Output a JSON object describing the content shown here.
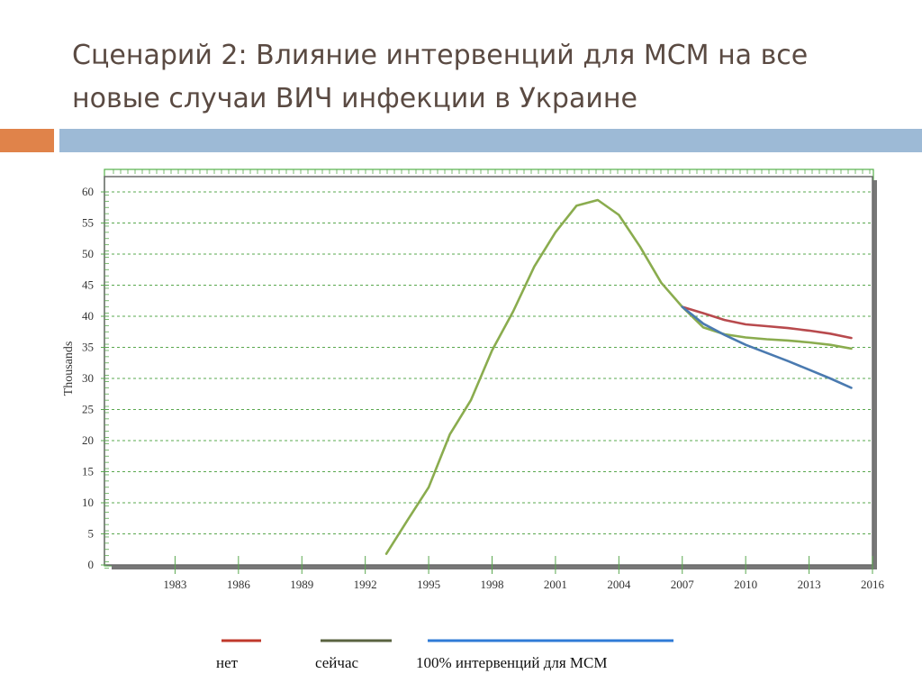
{
  "slide": {
    "title_line1": "Сценарий 2: Влияние интервенций для МСМ на все",
    "title_line2": "новые случаи ВИЧ инфекции в Украине"
  },
  "chart_data": {
    "type": "line",
    "title": "",
    "xlabel": "",
    "ylabel": "Thousands",
    "xlim": [
      1980,
      2016
    ],
    "ylim": [
      0,
      60
    ],
    "x_ticks": [
      1983,
      1986,
      1989,
      1992,
      1995,
      1998,
      2001,
      2004,
      2007,
      2010,
      2013,
      2016
    ],
    "y_ticks": [
      0,
      5,
      10,
      15,
      20,
      25,
      30,
      35,
      40,
      45,
      50,
      55,
      60
    ],
    "grid": true,
    "legend_position": "bottom",
    "series": [
      {
        "name": "сейчас",
        "color": "#8aac4e",
        "points": [
          [
            1993,
            1.8
          ],
          [
            1994,
            7.2
          ],
          [
            1995,
            12.5
          ],
          [
            1996,
            21.0
          ],
          [
            1997,
            26.5
          ],
          [
            1998,
            34.5
          ],
          [
            1999,
            40.8
          ],
          [
            2000,
            48.0
          ],
          [
            2001,
            53.5
          ],
          [
            2002,
            57.8
          ],
          [
            2003,
            58.7
          ],
          [
            2004,
            56.3
          ],
          [
            2005,
            51.2
          ],
          [
            2006,
            45.4
          ],
          [
            2007,
            41.5
          ],
          [
            2008,
            38.2
          ],
          [
            2009,
            37.1
          ],
          [
            2010,
            36.6
          ],
          [
            2011,
            36.3
          ],
          [
            2012,
            36.1
          ],
          [
            2013,
            35.8
          ],
          [
            2014,
            35.4
          ],
          [
            2015,
            34.8
          ]
        ]
      },
      {
        "name": "нет",
        "color": "#b84a4d",
        "points": [
          [
            2007,
            41.5
          ],
          [
            2008,
            40.5
          ],
          [
            2009,
            39.4
          ],
          [
            2010,
            38.7
          ],
          [
            2011,
            38.4
          ],
          [
            2012,
            38.1
          ],
          [
            2013,
            37.7
          ],
          [
            2014,
            37.2
          ],
          [
            2015,
            36.5
          ]
        ]
      },
      {
        "name": "100% интервенций для МСМ",
        "color": "#4a7ab0",
        "points": [
          [
            2007,
            41.5
          ],
          [
            2008,
            38.8
          ],
          [
            2009,
            37.0
          ],
          [
            2010,
            35.4
          ],
          [
            2011,
            34.1
          ],
          [
            2012,
            32.8
          ],
          [
            2013,
            31.4
          ],
          [
            2014,
            30.0
          ],
          [
            2015,
            28.5
          ]
        ]
      }
    ]
  },
  "legend": [
    {
      "label": "нет",
      "color": "#c0392b"
    },
    {
      "label": "сейчас",
      "color": "#5a6340"
    },
    {
      "label": "100% интервенций для МСМ",
      "color": "#2f7bd6"
    }
  ]
}
